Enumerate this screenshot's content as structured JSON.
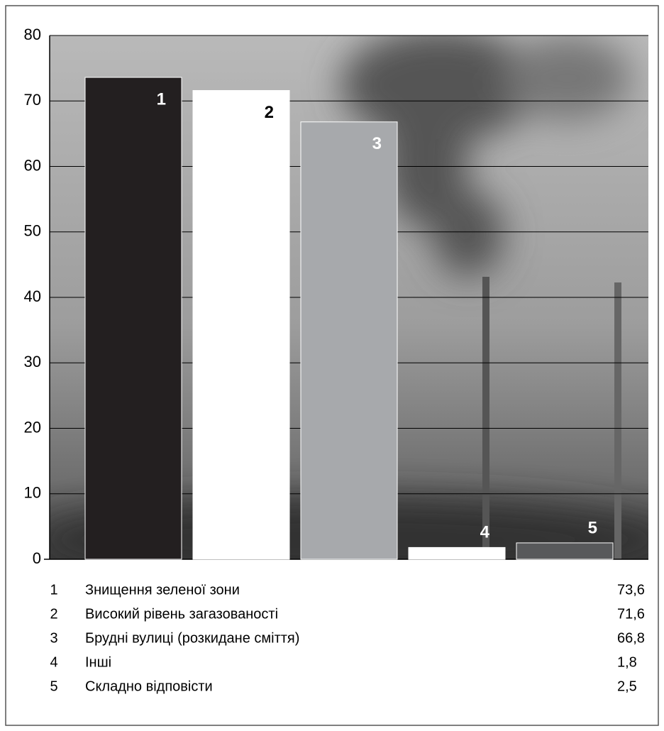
{
  "chart_data": {
    "type": "bar",
    "categories": [
      "1",
      "2",
      "3",
      "4",
      "5"
    ],
    "names": [
      "Знищення зеленої зони",
      "Високий рівень загазованості",
      "Брудні вулиці (розкидане сміття)",
      "Інші",
      "Складно відповісти"
    ],
    "values": [
      73.6,
      71.6,
      66.8,
      1.8,
      2.5
    ],
    "value_labels": [
      "73,6",
      "71,6",
      "66,8",
      "1,8",
      "2,5"
    ],
    "colors": [
      "#231f20",
      "#ffffff",
      "#a7a9ac",
      "#ffffff",
      "#58595b"
    ],
    "label_colors": [
      "#ffffff",
      "#000000",
      "#ffffff",
      "#000000",
      "#ffffff"
    ],
    "ylim": [
      0,
      80
    ],
    "yticks": [
      0,
      10,
      20,
      30,
      40,
      50,
      60,
      70,
      80
    ],
    "grid": true
  }
}
